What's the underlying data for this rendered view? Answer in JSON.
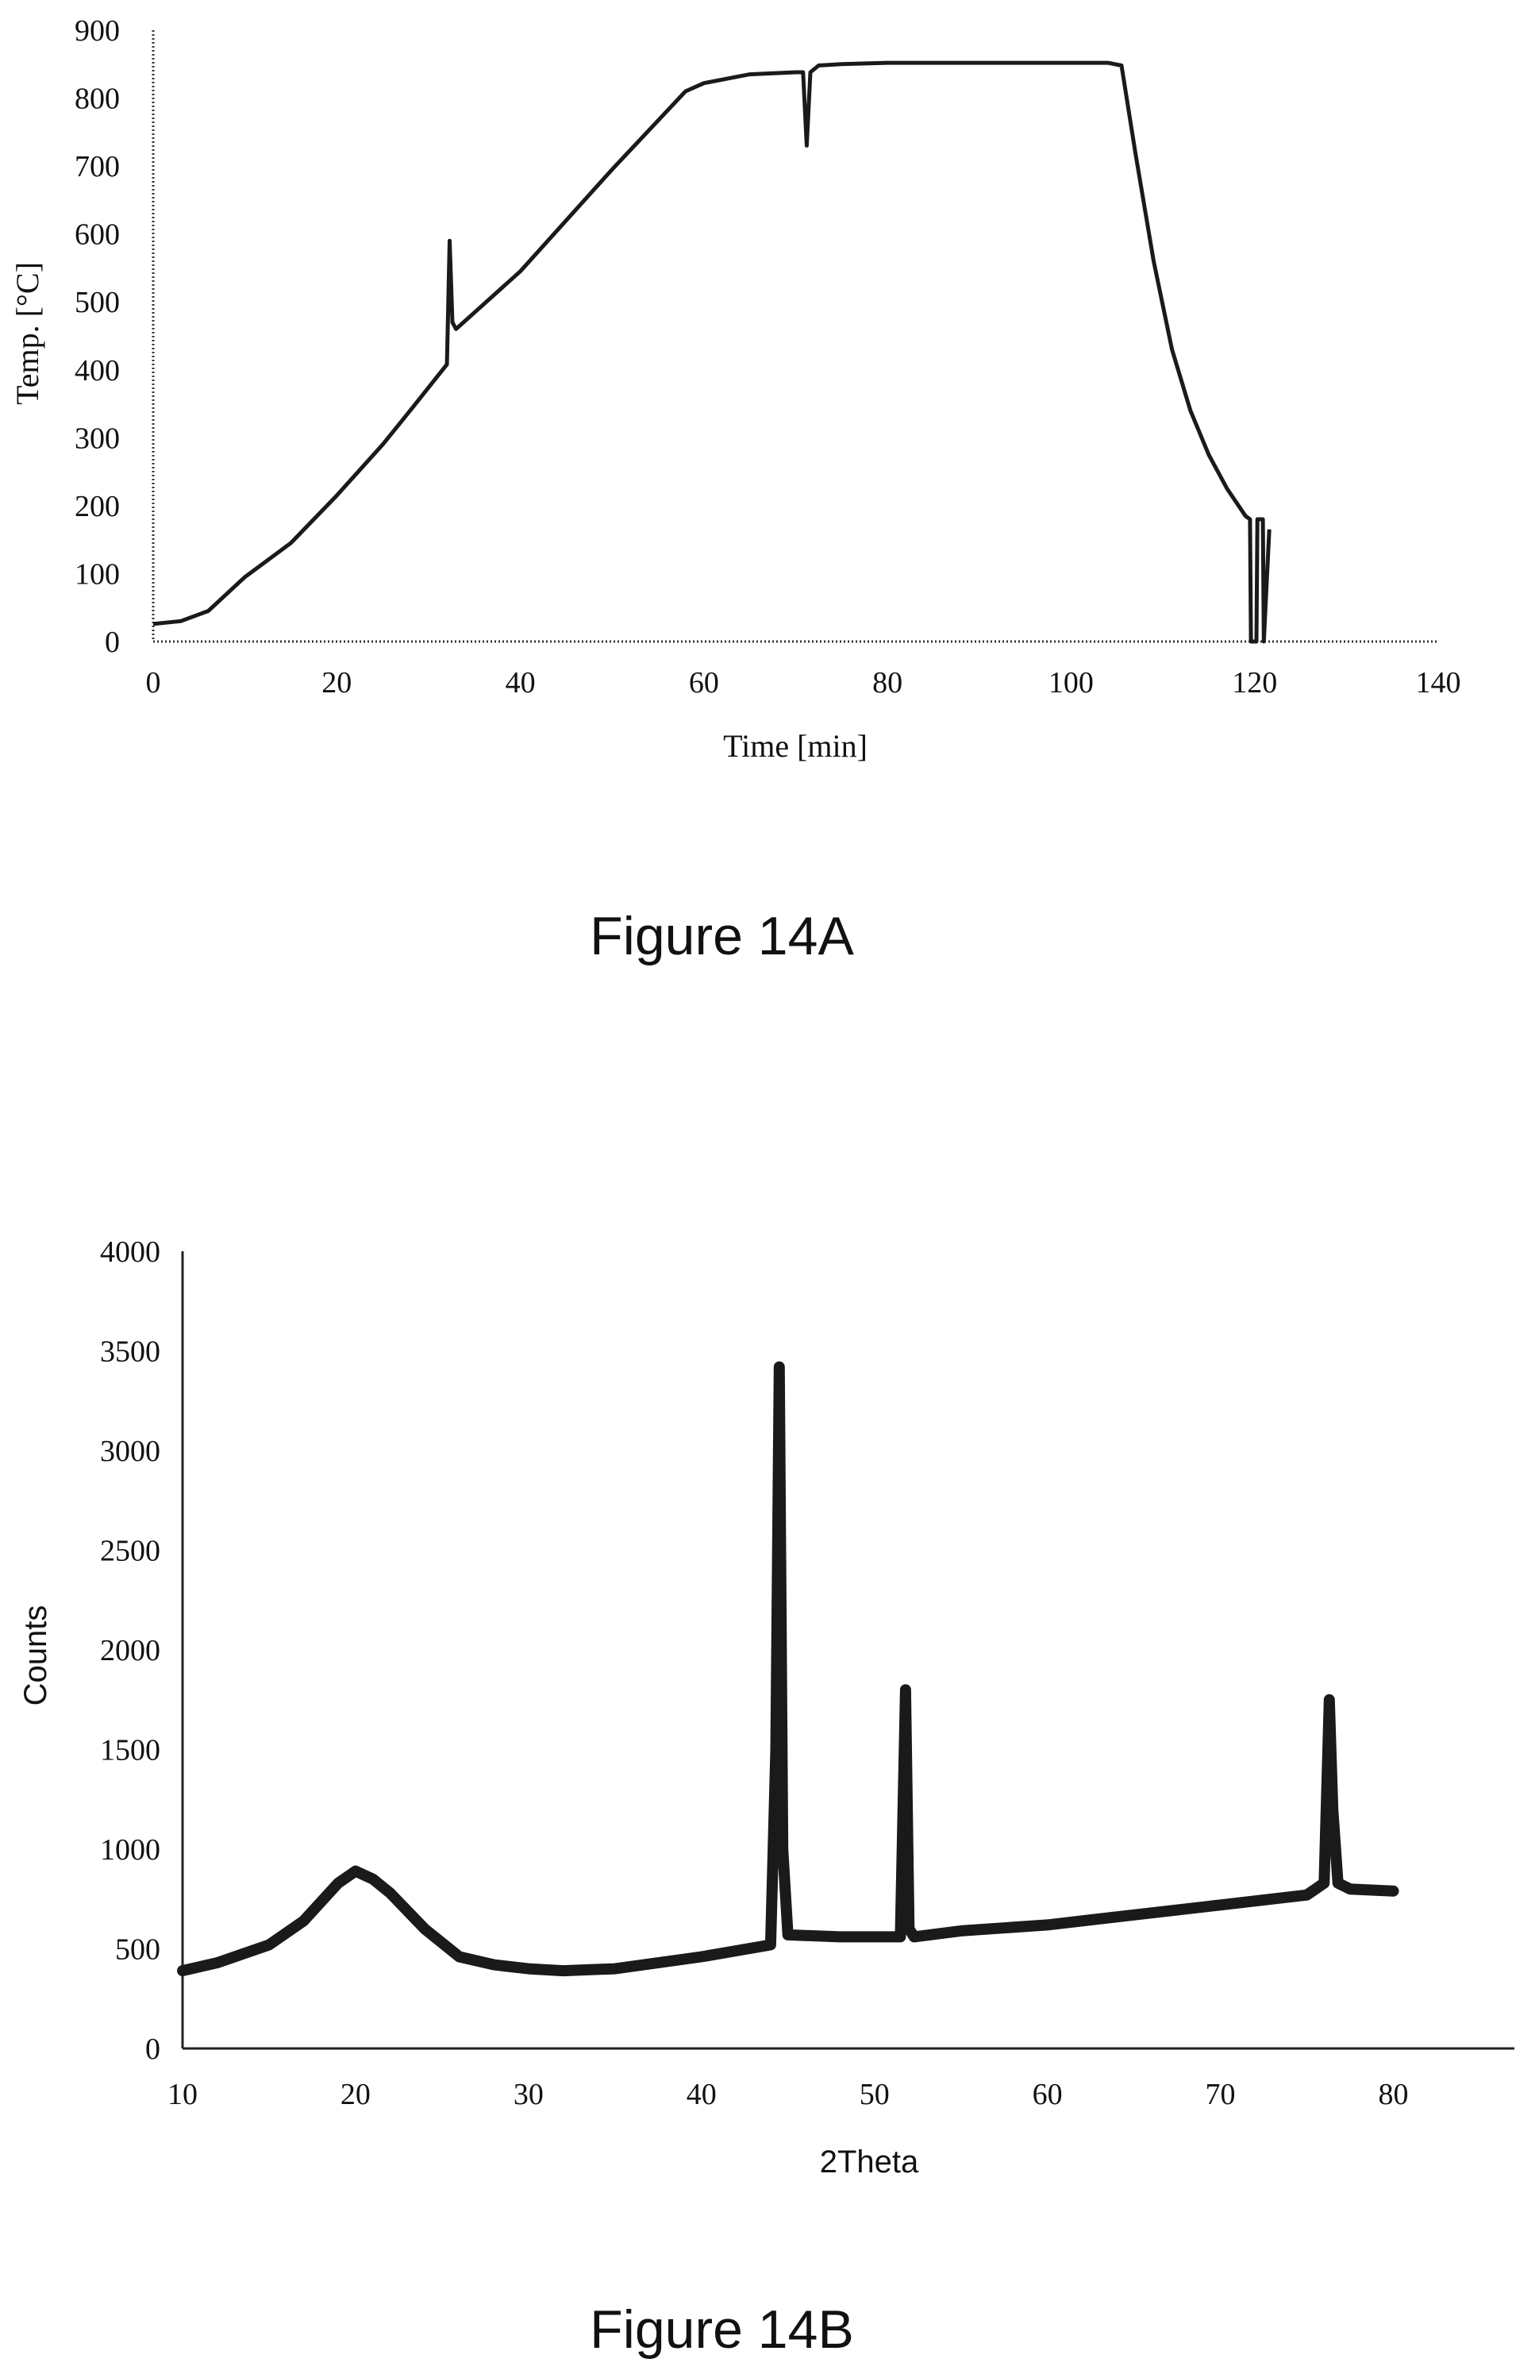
{
  "chart_data": [
    {
      "type": "line",
      "caption": "Figure 14A",
      "xlabel": "Time [min]",
      "ylabel": "Temp. [°C]",
      "xlim": [
        0,
        140
      ],
      "ylim": [
        0,
        900
      ],
      "xticks": [
        "0",
        "20",
        "40",
        "60",
        "80",
        "100",
        "120",
        "140"
      ],
      "yticks": [
        "0",
        "100",
        "200",
        "300",
        "400",
        "500",
        "600",
        "700",
        "800",
        "900"
      ],
      "grid": false,
      "legend": "none",
      "series": [
        {
          "x": [
            0,
            3,
            6,
            10,
            15,
            20,
            25,
            28,
            32,
            32.3,
            32.6,
            33,
            40,
            50,
            58,
            60,
            65,
            70,
            70.8,
            71.2,
            71.6,
            72.5,
            75,
            80,
            90,
            100,
            104,
            105.5,
            107,
            109,
            111,
            113,
            115,
            117,
            119,
            119.5,
            119.6,
            120.2,
            120.3,
            120.9,
            121,
            121.6
          ],
          "y": [
            26,
            30,
            45,
            95,
            145,
            215,
            290,
            340,
            408,
            590,
            470,
            460,
            545,
            695,
            810,
            822,
            835,
            838,
            838,
            730,
            838,
            848,
            850,
            852,
            852,
            852,
            852,
            848,
            720,
            560,
            430,
            340,
            275,
            225,
            185,
            180,
            0,
            0,
            180,
            180,
            0,
            165
          ]
        }
      ]
    },
    {
      "type": "line",
      "caption": "Figure 14B",
      "xlabel": "2Theta",
      "ylabel": "Counts",
      "xlim": [
        10,
        87
      ],
      "ylim": [
        0,
        4000
      ],
      "xticks": [
        "10",
        "20",
        "30",
        "40",
        "50",
        "60",
        "70",
        "80"
      ],
      "yticks": [
        "0",
        "500",
        "1000",
        "1500",
        "2000",
        "2500",
        "3000",
        "3500",
        "4000"
      ],
      "grid": false,
      "legend": "none",
      "series": [
        {
          "x": [
            10,
            12,
            15,
            17,
            19,
            20,
            21,
            22,
            24,
            26,
            28,
            30,
            32,
            35,
            40,
            44,
            44.3,
            44.5,
            44.7,
            45,
            48,
            51.5,
            51.8,
            52,
            52.3,
            55,
            60,
            65,
            70,
            75,
            76,
            76.3,
            76.5,
            76.8,
            77.5,
            80
          ],
          "y": [
            390,
            430,
            520,
            640,
            830,
            890,
            850,
            780,
            600,
            460,
            420,
            400,
            390,
            400,
            460,
            520,
            1500,
            3420,
            1000,
            570,
            560,
            560,
            1800,
            600,
            560,
            590,
            620,
            670,
            720,
            770,
            830,
            1750,
            1200,
            830,
            800,
            790
          ]
        }
      ]
    }
  ]
}
